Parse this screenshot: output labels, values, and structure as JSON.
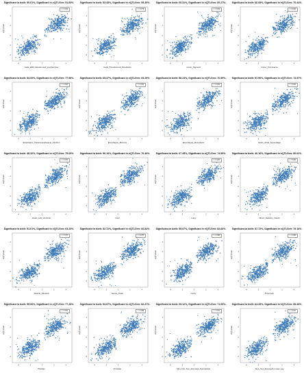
{
  "chart_data": [
    {
      "type": "scatter",
      "title": "Significant in both: 50.61%, Significant in eQTLGen: 51.83%",
      "xlabel": "Cells_EBV-transformed_lymphocytes",
      "ylabel": "eQTLGen",
      "legend": "r = 0.94",
      "legend_position": "top-right",
      "blob_left": {
        "cx": -2.2,
        "cy": -2.3
      },
      "blob_right": {
        "cx": 2.4,
        "cy": 2.6
      }
    },
    {
      "type": "scatter",
      "title": "Significant in both: 53.43%, Significant in eQTLGen: 59.39%",
      "xlabel": "Cells_Transformed_fibroblasts",
      "ylabel": "eQTLGen",
      "legend": "r = 0.79",
      "legend_position": "top-right",
      "blob_left": {
        "cx": -2.0,
        "cy": -2.0
      },
      "blob_right": {
        "cx": 2.2,
        "cy": 2.3
      }
    },
    {
      "type": "scatter",
      "title": "Significant in both: 60.31%, Significant in eQTLGen: 60.27%",
      "xlabel": "Colon_Sigmoid",
      "ylabel": "eQTLGen",
      "legend": "r = 0.93",
      "legend_position": "top-right",
      "blob_left": {
        "cx": -2.1,
        "cy": -2.1
      },
      "blob_right": {
        "cx": 2.2,
        "cy": 2.4
      }
    },
    {
      "type": "scatter",
      "title": "Significant in both: 66.08%, Significant in eQTLGen: 70.44%",
      "xlabel": "Colon_Transverse",
      "ylabel": "eQTLGen",
      "legend": "r = 0.92",
      "legend_position": "top-right",
      "blob_left": {
        "cx": -2.0,
        "cy": -2.0
      },
      "blob_right": {
        "cx": 2.1,
        "cy": 2.4
      }
    },
    {
      "type": "scatter",
      "title": "Significant in both: 54.60%, Significant in eQTLGen: 77.56%",
      "xlabel": "Esophagus_Gastroesophageal_Junction",
      "ylabel": "eQTLGen",
      "legend": "r = 0.94",
      "legend_position": "top-right",
      "blob_left": {
        "cx": -2.0,
        "cy": -2.1
      },
      "blob_right": {
        "cx": 2.0,
        "cy": 2.3
      }
    },
    {
      "type": "scatter",
      "title": "Significant in both: 65.37%, Significant in eQTLGen: 69.29%",
      "xlabel": "Esophagus_Mucosa",
      "ylabel": "eQTLGen",
      "legend": "r = 0.93",
      "legend_position": "top-right",
      "blob_left": {
        "cx": -2.1,
        "cy": -2.1
      },
      "blob_right": {
        "cx": 2.1,
        "cy": 2.4
      }
    },
    {
      "type": "scatter",
      "title": "Significant in both: 58.23%, Significant in eQTLGen: 70.59%",
      "xlabel": "Esophagus_Muscularis",
      "ylabel": "eQTLGen",
      "legend": "r = 0.93",
      "legend_position": "top-right",
      "blob_left": {
        "cx": -2.1,
        "cy": -2.1
      },
      "blob_right": {
        "cx": 2.1,
        "cy": 2.4
      }
    },
    {
      "type": "scatter",
      "title": "Significant in both: 57.90%, Significant in eQTLGen: 73.57%",
      "xlabel": "Heart_Atrial_Appendage",
      "ylabel": "eQTLGen",
      "legend": "r = 0.92",
      "legend_position": "top-right",
      "blob_left": {
        "cx": -2.0,
        "cy": -2.1
      },
      "blob_right": {
        "cx": 2.1,
        "cy": 2.3
      }
    },
    {
      "type": "scatter",
      "title": "Significant in both: 48.32%, Significant in eQTLGen: 75.09%",
      "xlabel": "Heart_Left_Ventricle",
      "ylabel": "eQTLGen",
      "legend": "r = 0.91",
      "legend_position": "top-right",
      "blob_left": {
        "cx": -1.9,
        "cy": -2.0
      },
      "blob_right": {
        "cx": 2.1,
        "cy": 2.2
      }
    },
    {
      "type": "scatter",
      "title": "Significant in both: 56.16%, Significant in eQTLGen: 76.49%",
      "xlabel": "Liver",
      "ylabel": "eQTLGen",
      "legend": "",
      "legend_position": "top-right",
      "blob_left": {
        "cx": -1.7,
        "cy": -1.9
      },
      "blob_right": {
        "cx": 1.9,
        "cy": 2.3
      }
    },
    {
      "type": "scatter",
      "title": "Significant in both: 67.45%, Significant in eQTLGen: 74.59%",
      "xlabel": "Lung",
      "ylabel": "eQTLGen",
      "legend": "r = 0.92",
      "legend_position": "top-right",
      "blob_left": {
        "cx": -2.1,
        "cy": -2.1
      },
      "blob_right": {
        "cx": 2.2,
        "cy": 2.4
      }
    },
    {
      "type": "scatter",
      "title": "Significant in both: 46.16%, Significant in eQTLGen: 80.02%",
      "xlabel": "Minor_Salivary_Gland",
      "ylabel": "eQTLGen",
      "legend": "r = 0.90",
      "legend_position": "top-right",
      "blob_left": {
        "cx": -1.8,
        "cy": -1.9
      },
      "blob_right": {
        "cx": 2.0,
        "cy": 2.3
      }
    },
    {
      "type": "scatter",
      "title": "Significant in both: 51.61%, Significant in eQTLGen: 63.23%",
      "xlabel": "Muscle_Skeletal",
      "ylabel": "eQTLGen",
      "legend": "r = 0.76",
      "legend_position": "top-right",
      "blob_left": {
        "cx": -2.0,
        "cy": -2.0
      },
      "blob_right": {
        "cx": 2.1,
        "cy": 2.3
      }
    },
    {
      "type": "scatter",
      "title": "Significant in both: 52.72%, Significant in eQTLGen: 66.84%",
      "xlabel": "Nerve_Tibial",
      "ylabel": "eQTLGen",
      "legend": "r = 0.78",
      "legend_position": "top-right",
      "blob_left": {
        "cx": -2.1,
        "cy": -2.0
      },
      "blob_right": {
        "cx": 2.2,
        "cy": 2.4
      }
    },
    {
      "type": "scatter",
      "title": "Significant in both: 55.07%, Significant in eQTLGen: 82.68%",
      "xlabel": "Ovary",
      "ylabel": "eQTLGen",
      "legend": "r = 0.88",
      "legend_position": "top-right",
      "blob_left": {
        "cx": -1.8,
        "cy": -1.9
      },
      "blob_right": {
        "cx": 2.0,
        "cy": 2.3
      }
    },
    {
      "type": "scatter",
      "title": "Significant in both: 57.72%, Significant in eQTLGen: 79.16%",
      "xlabel": "Pancreas",
      "ylabel": "eQTLGen",
      "legend": "r = 0.90",
      "legend_position": "top-right",
      "blob_left": {
        "cx": -1.9,
        "cy": -2.0
      },
      "blob_right": {
        "cx": 2.0,
        "cy": 2.3
      }
    },
    {
      "type": "scatter",
      "title": "Significant in both: 59.06%, Significant in eQTLGen: 77.28%",
      "xlabel": "Pituitary",
      "ylabel": "eQTLGen",
      "legend": "r = 0.91",
      "legend_position": "top-right",
      "blob_left": {
        "cx": -1.9,
        "cy": -2.0
      },
      "blob_right": {
        "cx": 2.0,
        "cy": 2.3
      }
    },
    {
      "type": "scatter",
      "title": "Significant in both: 54.97%, Significant in eQTLGen: 82.27%",
      "xlabel": "Prostate",
      "ylabel": "eQTLGen",
      "legend": "r = 0.89",
      "legend_position": "top-right",
      "blob_left": {
        "cx": -1.8,
        "cy": -1.9
      },
      "blob_right": {
        "cx": 2.0,
        "cy": 2.3
      }
    },
    {
      "type": "scatter",
      "title": "Significant in both: 69.12%, Significant in eQTLGen: 71.05%",
      "xlabel": "Skin_Not_Sun_Exposed_Suprapubic",
      "ylabel": "eQTLGen",
      "legend": "r = 0.91",
      "legend_position": "top-right",
      "blob_left": {
        "cx": -2.1,
        "cy": -2.1
      },
      "blob_right": {
        "cx": 2.2,
        "cy": 2.4
      }
    },
    {
      "type": "scatter",
      "title": "Significant in both: 64.45%, Significant in eQTLGen: 68.49%",
      "xlabel": "Skin_Sun_Exposed_Lower_leg",
      "ylabel": "eQTLGen",
      "legend": "r = 0.91",
      "legend_position": "top-right",
      "blob_left": {
        "cx": -2.1,
        "cy": -2.1
      },
      "blob_right": {
        "cx": 2.2,
        "cy": 2.4
      }
    }
  ],
  "axes": {
    "xlim": [
      -5,
      5
    ],
    "ylim": [
      -5,
      6
    ],
    "xticks": [
      -4,
      -2,
      0,
      2,
      4
    ],
    "yticks": [
      -4,
      -2,
      0,
      2,
      4
    ]
  },
  "colors": {
    "points": "#3d7ab8",
    "axis": "#555555"
  }
}
